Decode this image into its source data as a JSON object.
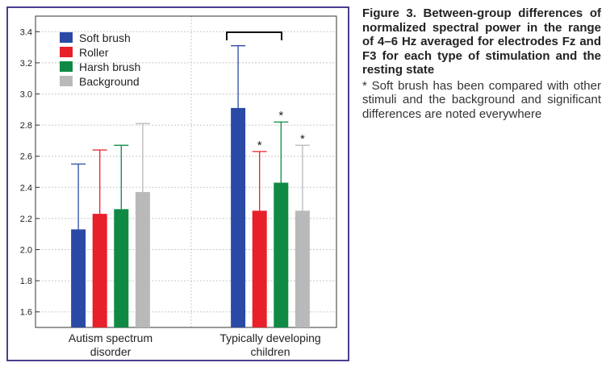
{
  "caption": {
    "title": "Figure 3. Between-group differences of normalized spectral power in the range of 4–6 Hz averaged for electrodes Fz and F3 for each type of stimulation and the resting state",
    "note": "* Soft brush has been compared with other stimuli and the background and significant differences are noted everywhere"
  },
  "chart_data": {
    "type": "bar",
    "categories": [
      "Autism spectrum\ndisorder",
      "Typically developing\nchildren"
    ],
    "series": [
      {
        "name": "Soft brush",
        "color": "#2b4aa6",
        "values": [
          2.13,
          2.91
        ],
        "error_upper": [
          2.55,
          3.31
        ],
        "sig": [
          false,
          false
        ]
      },
      {
        "name": "Roller",
        "color": "#e8202a",
        "values": [
          2.23,
          2.25
        ],
        "error_upper": [
          2.64,
          2.63
        ],
        "sig": [
          false,
          true
        ]
      },
      {
        "name": "Harsh brush",
        "color": "#0e8a45",
        "values": [
          2.26,
          2.43
        ],
        "error_upper": [
          2.67,
          2.82
        ],
        "sig": [
          false,
          true
        ]
      },
      {
        "name": "Background",
        "color": "#b9b9b9",
        "values": [
          2.37,
          2.25
        ],
        "error_upper": [
          2.81,
          2.67
        ],
        "sig": [
          false,
          true
        ]
      }
    ],
    "sig_marker": "*",
    "ylim": [
      1.5,
      3.5
    ],
    "yticks": [
      "1.6",
      "1.8",
      "2.0",
      "2.2",
      "2.4",
      "2.6",
      "2.8",
      "3.0",
      "3.2",
      "3.4"
    ],
    "bracket_over": "Typically developing\nchildren",
    "grid": true,
    "legend_position": "top-left"
  }
}
